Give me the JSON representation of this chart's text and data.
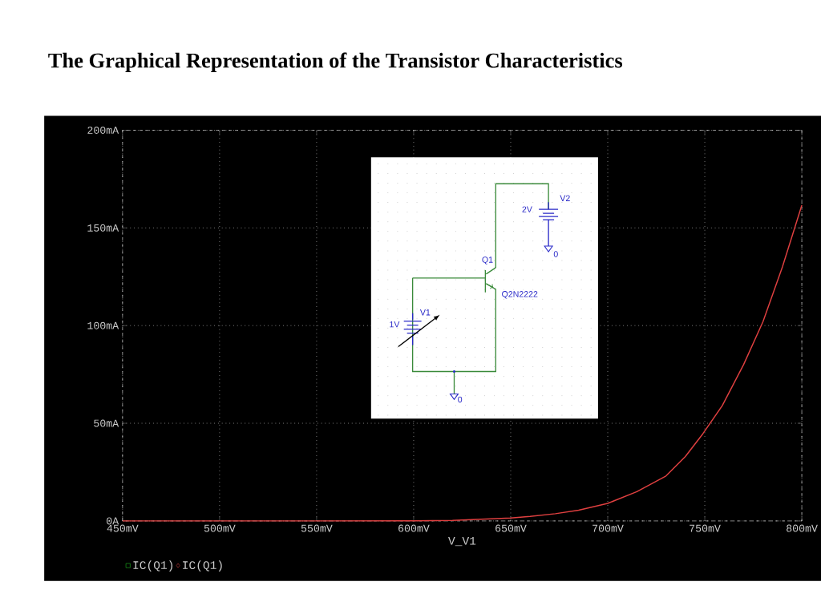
{
  "chart_data": {
    "type": "line",
    "title": "The Graphical Representation of the Transistor Characteristics",
    "xlabel": "V_V1",
    "x": [
      450,
      500,
      550,
      600,
      620,
      630,
      650,
      660,
      673,
      685,
      700,
      715,
      730,
      740,
      749,
      759,
      770,
      780,
      790,
      800
    ],
    "series": [
      {
        "name": "IC(Q1)",
        "color": "#22cc22",
        "values": [
          null,
          null,
          null,
          null,
          null,
          null,
          null,
          null,
          null,
          null,
          null,
          null,
          null,
          null,
          null,
          null,
          null,
          null,
          null,
          null
        ]
      },
      {
        "name": "IC(Q1)",
        "color": "#e04040",
        "values": [
          0,
          0,
          0,
          0.1,
          0.3,
          0.7,
          1.5,
          2.3,
          3.7,
          5.5,
          9,
          15,
          23,
          33,
          44.6,
          59,
          80,
          102,
          130,
          161.6
        ]
      }
    ],
    "xlim": [
      450,
      800
    ],
    "ylim": [
      0,
      200
    ],
    "xticks": [
      {
        "value": 450,
        "label": "450mV"
      },
      {
        "value": 500,
        "label": "500mV"
      },
      {
        "value": 550,
        "label": "550mV"
      },
      {
        "value": 600,
        "label": "600mV"
      },
      {
        "value": 650,
        "label": "650mV"
      },
      {
        "value": 700,
        "label": "700mV"
      },
      {
        "value": 750,
        "label": "750mV"
      },
      {
        "value": 800,
        "label": "800mV"
      }
    ],
    "yticks": [
      {
        "value": 0,
        "label": "0A"
      },
      {
        "value": 50,
        "label": "50mA"
      },
      {
        "value": 100,
        "label": "100mA"
      },
      {
        "value": 150,
        "label": "150mA"
      },
      {
        "value": 200,
        "label": "200mA"
      }
    ],
    "grid": true,
    "legend": "bottom left",
    "annotations": [
      "V2",
      "2V",
      "0",
      "Q1",
      "Q2N2222",
      "V1",
      "1V",
      "0"
    ]
  }
}
